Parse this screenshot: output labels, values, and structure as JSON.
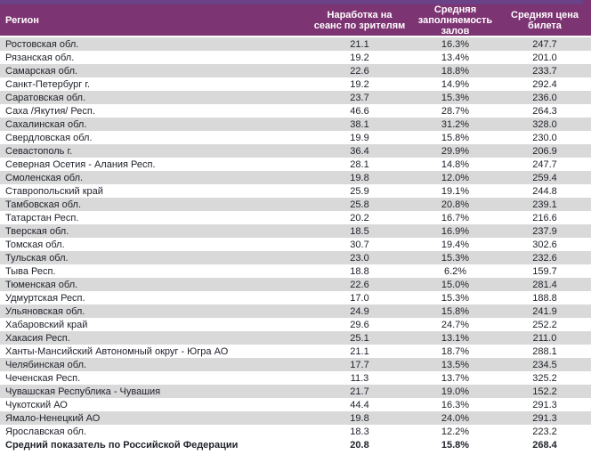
{
  "colors": {
    "header_bg": "#7d3472",
    "top_strip": "#6a4288",
    "row_alt_bg": "#d9d9d9",
    "header_text": "#ffffff",
    "body_text": "#21242c"
  },
  "table": {
    "columns": [
      {
        "label": "Регион"
      },
      {
        "label": "Наработка на\nсеанс по зрителям"
      },
      {
        "label": "Средняя\nзаполняемость\nзалов"
      },
      {
        "label": "Средняя цена\nбилета"
      }
    ],
    "rows": [
      {
        "region": "Ростовская обл.",
        "per_session": "21.1",
        "occupancy": "16.3%",
        "price": "247.7"
      },
      {
        "region": "Рязанская обл.",
        "per_session": "19.2",
        "occupancy": "13.4%",
        "price": "201.0"
      },
      {
        "region": "Самарская обл.",
        "per_session": "22.6",
        "occupancy": "18.8%",
        "price": "233.7"
      },
      {
        "region": "Санкт-Петербург г.",
        "per_session": "19.2",
        "occupancy": "14.9%",
        "price": "292.4"
      },
      {
        "region": "Саратовская обл.",
        "per_session": "23.7",
        "occupancy": "15.3%",
        "price": "236.0"
      },
      {
        "region": "Саха /Якутия/ Респ.",
        "per_session": "46.6",
        "occupancy": "28.7%",
        "price": "264.3"
      },
      {
        "region": "Сахалинская обл.",
        "per_session": "38.1",
        "occupancy": "31.2%",
        "price": "328.0"
      },
      {
        "region": "Свердловская обл.",
        "per_session": "19.9",
        "occupancy": "15.8%",
        "price": "230.0"
      },
      {
        "region": "Севастополь г.",
        "per_session": "36.4",
        "occupancy": "29.9%",
        "price": "206.9"
      },
      {
        "region": "Северная Осетия - Алания Респ.",
        "per_session": "28.1",
        "occupancy": "14.8%",
        "price": "247.7"
      },
      {
        "region": "Смоленская обл.",
        "per_session": "19.8",
        "occupancy": "12.0%",
        "price": "259.4"
      },
      {
        "region": "Ставропольский край",
        "per_session": "25.9",
        "occupancy": "19.1%",
        "price": "244.8"
      },
      {
        "region": "Тамбовская обл.",
        "per_session": "25.8",
        "occupancy": "20.8%",
        "price": "239.1"
      },
      {
        "region": "Татарстан Респ.",
        "per_session": "20.2",
        "occupancy": "16.7%",
        "price": "216.6"
      },
      {
        "region": "Тверская обл.",
        "per_session": "18.5",
        "occupancy": "16.9%",
        "price": "237.9"
      },
      {
        "region": "Томская обл.",
        "per_session": "30.7",
        "occupancy": "19.4%",
        "price": "302.6"
      },
      {
        "region": "Тульская обл.",
        "per_session": "23.0",
        "occupancy": "15.3%",
        "price": "232.6"
      },
      {
        "region": "Тыва Респ.",
        "per_session": "18.8",
        "occupancy": "6.2%",
        "price": "159.7"
      },
      {
        "region": "Тюменская обл.",
        "per_session": "22.6",
        "occupancy": "15.0%",
        "price": "281.4"
      },
      {
        "region": "Удмуртская Респ.",
        "per_session": "17.0",
        "occupancy": "15.3%",
        "price": "188.8"
      },
      {
        "region": "Ульяновская обл.",
        "per_session": "24.9",
        "occupancy": "15.8%",
        "price": "241.9"
      },
      {
        "region": "Хабаровский край",
        "per_session": "29.6",
        "occupancy": "24.7%",
        "price": "252.2"
      },
      {
        "region": "Хакасия Респ.",
        "per_session": "25.1",
        "occupancy": "13.1%",
        "price": "211.0"
      },
      {
        "region": "Ханты-Мансийский Автономный округ - Югра АО",
        "per_session": "21.1",
        "occupancy": "18.7%",
        "price": "288.1"
      },
      {
        "region": "Челябинская обл.",
        "per_session": "17.7",
        "occupancy": "13.5%",
        "price": "234.5"
      },
      {
        "region": "Чеченская Респ.",
        "per_session": "11.3",
        "occupancy": "13.7%",
        "price": "325.2"
      },
      {
        "region": "Чувашская Республика - Чувашия",
        "per_session": "21.7",
        "occupancy": "19.0%",
        "price": "152.2"
      },
      {
        "region": "Чукотский АО",
        "per_session": "44.4",
        "occupancy": "16.3%",
        "price": "291.3"
      },
      {
        "region": "Ямало-Ненецкий АО",
        "per_session": "19.8",
        "occupancy": "24.0%",
        "price": "291.3"
      },
      {
        "region": "Ярославская обл.",
        "per_session": "18.3",
        "occupancy": "12.2%",
        "price": "223.2"
      }
    ],
    "total_row": {
      "region": "Средний показатель по Российской Федерации",
      "per_session": "20.8",
      "occupancy": "15.8%",
      "price": "268.4"
    }
  }
}
